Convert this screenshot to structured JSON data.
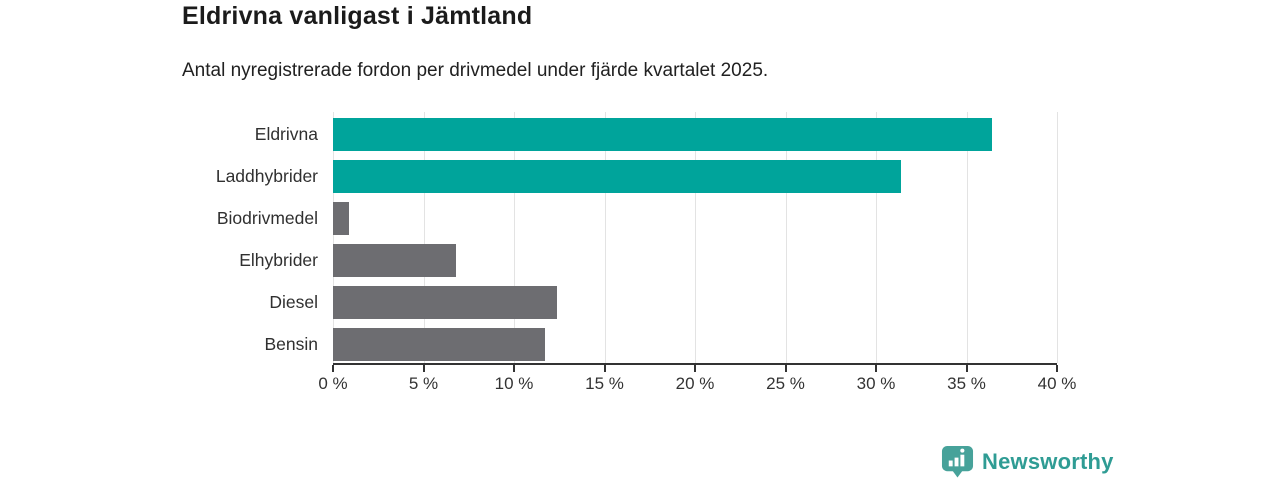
{
  "title": "Eldrivna vanligast i Jämtland",
  "subtitle": "Antal nyregistrerade fordon per drivmedel under fjärde kvartalet 2025.",
  "branding": {
    "logo_text": "Newsworthy",
    "logo_icon": "newsworthy-barchart-pin-icon",
    "logo_text_color": "#2f9c94",
    "logo_badge_color": "#47a29a"
  },
  "colors": {
    "highlight_bar": "#00a49b",
    "default_bar": "#6d6d71",
    "gridline": "#e3e3e3",
    "axis": "#333333",
    "label_text": "#303030",
    "title_text": "#1b1b1b"
  },
  "chart_data": {
    "type": "bar",
    "orientation": "horizontal",
    "title": "Eldrivna vanligast i Jämtland",
    "subtitle": "Antal nyregistrerade fordon per drivmedel under fjärde kvartalet 2025.",
    "categories": [
      "Eldrivna",
      "Laddhybrider",
      "Biodrivmedel",
      "Elhybrider",
      "Diesel",
      "Bensin"
    ],
    "values": [
      36.4,
      31.4,
      0.9,
      6.8,
      12.4,
      11.7
    ],
    "unit": "%",
    "bar_colors": [
      "#00a49b",
      "#00a49b",
      "#6d6d71",
      "#6d6d71",
      "#6d6d71",
      "#6d6d71"
    ],
    "xlim": [
      0,
      40
    ],
    "x_tick_step": 5,
    "x_tick_labels": [
      "0 %",
      "5 %",
      "10 %",
      "15 %",
      "20 %",
      "25 %",
      "30 %",
      "35 %",
      "40 %"
    ],
    "grid": true,
    "legend": false
  }
}
